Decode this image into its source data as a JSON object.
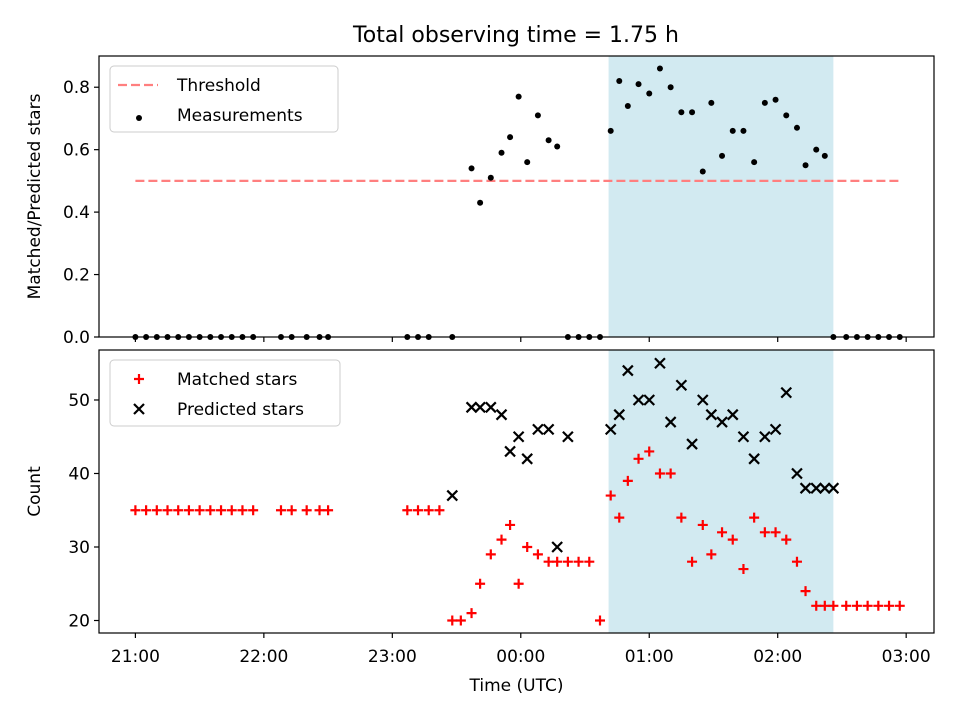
{
  "title": "Total observing time = 1.75 h",
  "chart_data": [
    {
      "type": "scatter",
      "ylabel": "Matched/Predicted stars",
      "xlabel": "",
      "ylim": [
        0,
        0.9
      ],
      "yticks": [
        0.0,
        0.2,
        0.4,
        0.6,
        0.8
      ],
      "ytick_labels": [
        "0.0",
        "0.2",
        "0.4",
        "0.6",
        "0.8"
      ],
      "legend_position": "top-left",
      "legend": [
        "Threshold",
        "Measurements"
      ],
      "threshold": {
        "name": "Threshold",
        "value": 0.5,
        "x_start": "21:00",
        "x_end": "02:57",
        "color": "#ff7f7f"
      },
      "shaded_region": {
        "x_start": "00:41",
        "x_end": "02:26",
        "color": "#add8e6"
      },
      "series": [
        {
          "name": "Measurements",
          "color": "#000000",
          "marker": "dot",
          "x": [
            "21:00",
            "21:05",
            "21:10",
            "21:15",
            "21:20",
            "21:25",
            "21:30",
            "21:35",
            "21:40",
            "21:45",
            "21:50",
            "21:55",
            "22:08",
            "22:13",
            "22:20",
            "22:26",
            "22:30",
            "23:07",
            "23:12",
            "23:17",
            "23:28",
            "23:37",
            "23:41",
            "23:46",
            "23:51",
            "23:55",
            "23:59",
            "00:03",
            "00:08",
            "00:13",
            "00:17",
            "00:22",
            "00:27",
            "00:32",
            "00:37",
            "00:42",
            "00:46",
            "00:50",
            "00:55",
            "01:00",
            "01:05",
            "01:10",
            "01:15",
            "01:20",
            "01:25",
            "01:29",
            "01:34",
            "01:39",
            "01:44",
            "01:49",
            "01:54",
            "01:59",
            "02:04",
            "02:09",
            "02:13",
            "02:18",
            "02:22",
            "02:26",
            "02:32",
            "02:37",
            "02:42",
            "02:47",
            "02:52",
            "02:57"
          ],
          "y": [
            0,
            0,
            0,
            0,
            0,
            0,
            0,
            0,
            0,
            0,
            0,
            0,
            0,
            0,
            0,
            0,
            0,
            0,
            0,
            0,
            0,
            0.54,
            0.43,
            0.51,
            0.59,
            0.64,
            0.77,
            0.56,
            0.71,
            0.63,
            0.61,
            0,
            0,
            0,
            0,
            0.66,
            0.82,
            0.74,
            0.81,
            0.78,
            0.86,
            0.8,
            0.72,
            0.72,
            0.53,
            0.75,
            0.58,
            0.66,
            0.66,
            0.56,
            0.75,
            0.76,
            0.71,
            0.67,
            0.55,
            0.6,
            0.58,
            0,
            0,
            0,
            0,
            0,
            0,
            0
          ]
        }
      ]
    },
    {
      "type": "scatter",
      "ylabel": "Count",
      "xlabel": "Time (UTC)",
      "ylim": [
        18.3,
        56.8
      ],
      "yticks": [
        20,
        30,
        40,
        50
      ],
      "ytick_labels": [
        "20",
        "30",
        "40",
        "50"
      ],
      "xlim": [
        "20:43",
        "03:13"
      ],
      "xticks": [
        "21:00",
        "22:00",
        "23:00",
        "00:00",
        "01:00",
        "02:00",
        "03:00"
      ],
      "xtick_labels": [
        "21:00",
        "22:00",
        "23:00",
        "00:00",
        "01:00",
        "02:00",
        "03:00"
      ],
      "legend_position": "top-left",
      "legend": [
        "Matched stars",
        "Predicted stars"
      ],
      "shaded_region": {
        "x_start": "00:41",
        "x_end": "02:26",
        "color": "#add8e6"
      },
      "series": [
        {
          "name": "Matched stars",
          "color": "#ff0000",
          "marker": "plus",
          "x": [
            "21:00",
            "21:05",
            "21:10",
            "21:15",
            "21:20",
            "21:25",
            "21:30",
            "21:35",
            "21:40",
            "21:45",
            "21:50",
            "21:55",
            "22:08",
            "22:13",
            "22:20",
            "22:26",
            "22:30",
            "23:07",
            "23:12",
            "23:17",
            "23:22",
            "23:28",
            "23:32",
            "23:37",
            "23:41",
            "23:46",
            "23:51",
            "23:55",
            "23:59",
            "00:03",
            "00:08",
            "00:13",
            "00:17",
            "00:22",
            "00:27",
            "00:32",
            "00:37",
            "00:42",
            "00:46",
            "00:50",
            "00:55",
            "01:00",
            "01:05",
            "01:10",
            "01:15",
            "01:20",
            "01:25",
            "01:29",
            "01:34",
            "01:39",
            "01:44",
            "01:49",
            "01:54",
            "01:59",
            "02:04",
            "02:09",
            "02:13",
            "02:18",
            "02:22",
            "02:26",
            "02:32",
            "02:37",
            "02:42",
            "02:47",
            "02:52",
            "02:57"
          ],
          "y": [
            35,
            35,
            35,
            35,
            35,
            35,
            35,
            35,
            35,
            35,
            35,
            35,
            35,
            35,
            35,
            35,
            35,
            35,
            35,
            35,
            35,
            20,
            20,
            21,
            25,
            29,
            31,
            33,
            25,
            30,
            29,
            28,
            28,
            28,
            28,
            28,
            20,
            37,
            34,
            39,
            42,
            43,
            40,
            40,
            34,
            28,
            33,
            29,
            32,
            31,
            27,
            34,
            32,
            32,
            31,
            28,
            24,
            22,
            22,
            22,
            22,
            22,
            22,
            22,
            22,
            22
          ]
        },
        {
          "name": "Predicted stars",
          "color": "#000000",
          "marker": "x",
          "x": [
            "23:28",
            "23:37",
            "23:41",
            "23:46",
            "23:51",
            "23:55",
            "23:59",
            "00:03",
            "00:08",
            "00:13",
            "00:17",
            "00:22",
            "00:42",
            "00:46",
            "00:50",
            "00:55",
            "01:00",
            "01:05",
            "01:10",
            "01:15",
            "01:20",
            "01:25",
            "01:29",
            "01:34",
            "01:39",
            "01:44",
            "01:49",
            "01:54",
            "01:59",
            "02:04",
            "02:09",
            "02:13",
            "02:18",
            "02:22",
            "02:26"
          ],
          "y": [
            37,
            49,
            49,
            49,
            48,
            43,
            45,
            42,
            46,
            46,
            30,
            45,
            46,
            48,
            54,
            50,
            50,
            55,
            47,
            52,
            44,
            50,
            48,
            47,
            48,
            45,
            42,
            45,
            46,
            51,
            40,
            38,
            38,
            38,
            38
          ]
        }
      ]
    }
  ]
}
